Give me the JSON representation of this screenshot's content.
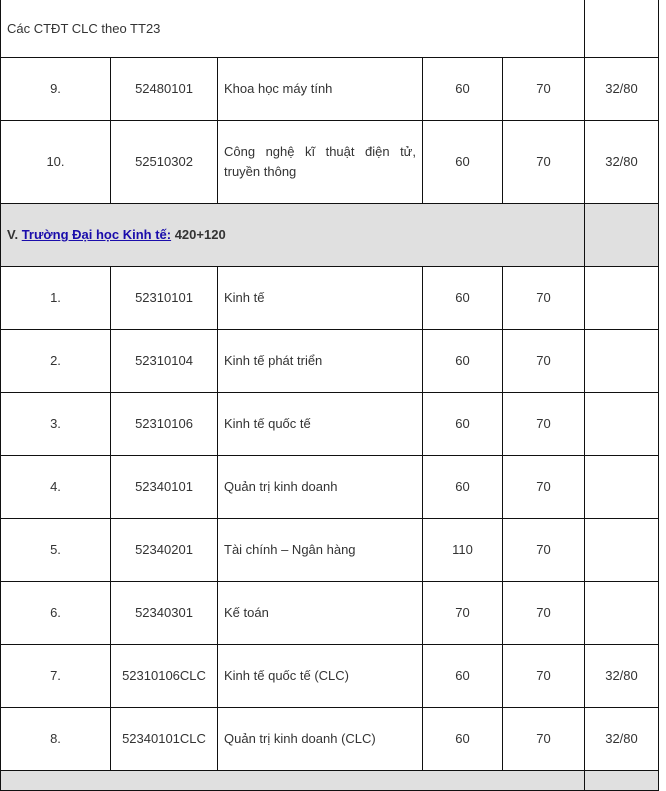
{
  "top_row": {
    "label": "Các CTĐT CLC theo TT23"
  },
  "rows_a": [
    {
      "stt": "9.",
      "code": "52480101",
      "name": "Khoa học máy tính",
      "c1": "60",
      "c2": "70",
      "c3": "32/80"
    },
    {
      "stt": "10.",
      "code": "52510302",
      "name": "Công nghệ kĩ thuật điện tử, truyền thông",
      "c1": "60",
      "c2": "70",
      "c3": "32/80"
    }
  ],
  "section": {
    "prefix": "V. ",
    "link": "Trường Đại học Kinh tế:",
    "suffix": " 420+120"
  },
  "rows_b": [
    {
      "stt": "1.",
      "code": "52310101",
      "name": "Kinh tế",
      "c1": "60",
      "c2": "70",
      "c3": ""
    },
    {
      "stt": "2.",
      "code": "52310104",
      "name": "Kinh tế phát triển",
      "c1": "60",
      "c2": "70",
      "c3": ""
    },
    {
      "stt": "3.",
      "code": "52310106",
      "name": "Kinh tế quốc tế",
      "c1": "60",
      "c2": "70",
      "c3": ""
    },
    {
      "stt": "4.",
      "code": "52340101",
      "name": "Quản trị kinh doanh",
      "c1": "60",
      "c2": "70",
      "c3": ""
    },
    {
      "stt": "5.",
      "code": "52340201",
      "name": "Tài chính – Ngân hàng",
      "c1": "110",
      "c2": "70",
      "c3": ""
    },
    {
      "stt": "6.",
      "code": "52340301",
      "name": "Kế toán",
      "c1": "70",
      "c2": "70",
      "c3": ""
    },
    {
      "stt": "7.",
      "code": "52310106CLC",
      "name": "Kinh tế quốc tế (CLC)",
      "c1": "60",
      "c2": "70",
      "c3": "32/80"
    },
    {
      "stt": "8.",
      "code": "52340101CLC",
      "name": "Quản trị kinh doanh (CLC)",
      "c1": "60",
      "c2": "70",
      "c3": "32/80"
    }
  ]
}
